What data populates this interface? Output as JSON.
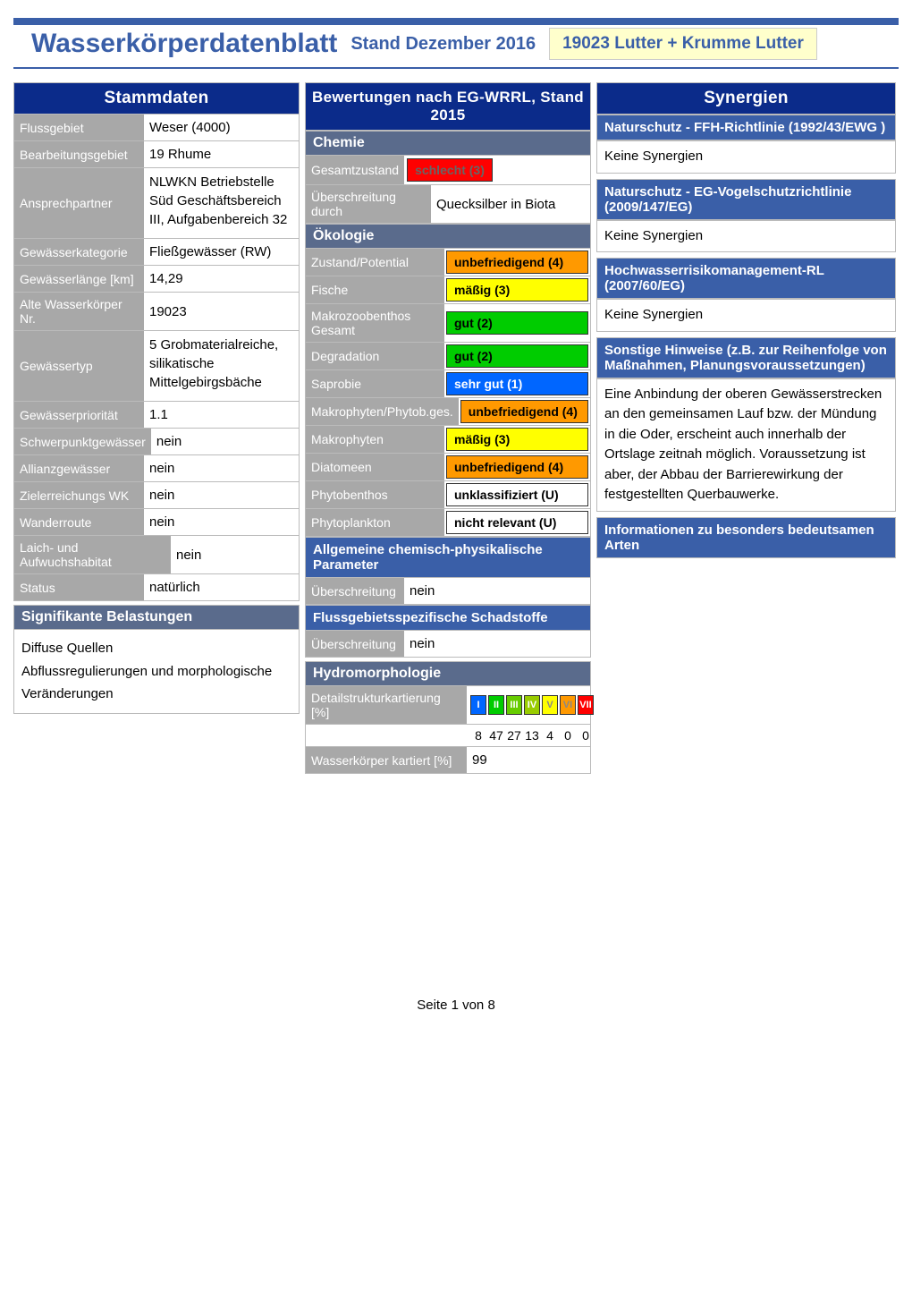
{
  "header": {
    "title": "Wasserkörperdatenblatt",
    "subtitle": "Stand Dezember 2016",
    "code": "19023 Lutter + Krumme Lutter"
  },
  "stammdaten": {
    "title": "Stammdaten",
    "rows": [
      {
        "label": "Flussgebiet",
        "value": "Weser (4000)"
      },
      {
        "label": "Bearbeitungsgebiet",
        "value": "19 Rhume"
      },
      {
        "label": "Ansprechpartner",
        "value": "NLWKN Betriebstelle Süd Geschäftsbereich III, Aufgabenbereich 32",
        "tall": true
      },
      {
        "label": "Gewässerkategorie",
        "value": "Fließgewässer (RW)"
      },
      {
        "label": "Gewässerlänge [km]",
        "value": "14,29"
      },
      {
        "label": "Alte Wasserkörper Nr.",
        "value": "19023"
      },
      {
        "label": "Gewässertyp",
        "value": "5 Grobmaterialreiche, silikatische Mittelgebirgsbäche",
        "tall": true
      },
      {
        "label": "Gewässerpriorität",
        "value": "1.1"
      },
      {
        "label": "Schwerpunktgewässer",
        "value": "nein"
      },
      {
        "label": "Allianzgewässer",
        "value": "nein"
      },
      {
        "label": "Zielerreichungs WK",
        "value": "nein"
      },
      {
        "label": "Wanderroute",
        "value": "nein"
      },
      {
        "label": "Laich- und Aufwuchshabitat",
        "value": "nein",
        "wide": true
      },
      {
        "label": "Status",
        "value": "natürlich"
      }
    ],
    "pressures_header": "Signifikante Belastungen",
    "pressures": "Diffuse Quellen\nAbflussregulierungen und morphologische Veränderungen"
  },
  "bewertungen": {
    "title": "Bewertungen nach EG-WRRL, Stand 2015",
    "chemie": {
      "header": "Chemie",
      "gesamt_label": "Gesamtzustand",
      "gesamt_value": "schlecht (3)",
      "gesamt_color": "#ff0000",
      "gesamt_text_color": "#666",
      "uber_label": "Überschreitung durch",
      "uber_value": "Quecksilber in Biota"
    },
    "okologie": {
      "header": "Ökologie",
      "rows": [
        {
          "label": "Zustand/Potential",
          "value": "unbefriedigend (4)",
          "bg": "#ff9900",
          "bold": true
        },
        {
          "label": "Fische",
          "value": "mäßig (3)",
          "bg": "#ffff00"
        },
        {
          "label": "Makrozoobenthos Gesamt",
          "value": "gut (2)",
          "bg": "#00cc00"
        },
        {
          "label": "Degradation",
          "value": "gut (2)",
          "bg": "#00cc00"
        },
        {
          "label": "Saprobie",
          "value": "sehr gut (1)",
          "bg": "#0066ff",
          "fg": "#fff"
        },
        {
          "label": "Makrophyten/Phytob.ges.",
          "value": "unbefriedigend (4)",
          "bg": "#ff9900"
        },
        {
          "label": "Makrophyten",
          "value": "mäßig (3)",
          "bg": "#ffff00"
        },
        {
          "label": "Diatomeen",
          "value": "unbefriedigend (4)",
          "bg": "#ff9900"
        },
        {
          "label": "Phytobenthos",
          "value": "unklassifiziert (U)",
          "bg": "#ffffff"
        },
        {
          "label": "Phytoplankton",
          "value": "nicht relevant (U)",
          "bg": "#ffffff"
        }
      ]
    },
    "allgemeine": {
      "header": "Allgemeine chemisch-physikalische Parameter",
      "label": "Überschreitung",
      "value": "nein"
    },
    "fluss": {
      "header": "Flussgebietsspezifische Schadstoffe",
      "label": "Überschreitung",
      "value": "nein"
    },
    "hydro": {
      "header": "Hydromorphologie",
      "detail_label": "Detailstrukturkartierung [%]",
      "romans": [
        {
          "r": "I",
          "bg": "#0066ff",
          "pct": "8"
        },
        {
          "r": "II",
          "bg": "#00cc00",
          "pct": "47"
        },
        {
          "r": "III",
          "bg": "#66cc00",
          "pct": "27"
        },
        {
          "r": "IV",
          "bg": "#99cc00",
          "pct": "13"
        },
        {
          "r": "V",
          "bg": "#ffff00",
          "pct": "4",
          "fg": "#888"
        },
        {
          "r": "VI",
          "bg": "#ff9900",
          "pct": "0",
          "fg": "#888"
        },
        {
          "r": "VII",
          "bg": "#ff0000",
          "pct": "0",
          "fg": "#fff"
        }
      ],
      "kartiert_label": "Wasserkörper kartiert [%]",
      "kartiert_value": "99"
    }
  },
  "synergien": {
    "title": "Synergien",
    "sections": [
      {
        "header": "Naturschutz - FFH-Richtlinie (1992/43/EWG )",
        "text": "Keine Synergien"
      },
      {
        "header": "Naturschutz - EG-Vogelschutzrichtlinie (2009/147/EG)",
        "text": "Keine Synergien"
      },
      {
        "header": "Hochwasserrisikomanagement-RL (2007/60/EG)",
        "text": "Keine Synergien"
      },
      {
        "header": "Sonstige Hinweise (z.B. zur Reihenfolge von Maßnahmen, Planungsvoraussetzungen)",
        "text": "Eine Anbindung der oberen Gewässerstrecken an den gemeinsamen Lauf bzw. der Mündung in die Oder, erscheint  auch innerhalb der Ortslage zeitnah möglich. Voraussetzung ist aber, der Abbau der Barrierewirkung der festgestellten Querbauwerke."
      },
      {
        "header": "Informationen zu besonders bedeutsamen Arten",
        "text": ""
      }
    ]
  },
  "footer": "Seite 1 von 8"
}
